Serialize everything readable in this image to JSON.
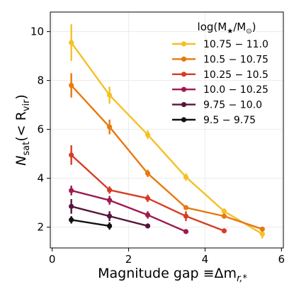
{
  "chart_data": {
    "type": "line",
    "xlabel": "Magnitude gap ≡Δm",
    "xlabel_sub": "r,*",
    "ylabel": "N",
    "ylabel_sub": "sat",
    "ylabel_paren": "(< R",
    "ylabel_paren_sub": "vir",
    "ylabel_close": ")",
    "xlim": [
      -0.05,
      6.05
    ],
    "ylim": [
      1.15,
      10.8
    ],
    "xticks": [
      0,
      2,
      4,
      6
    ],
    "yticks": [
      2,
      4,
      6,
      8,
      10
    ],
    "grid": true,
    "legend": {
      "placement": "top-right",
      "title_main": "log(M",
      "title_sub1": "★",
      "title_mid": "/M",
      "title_sub2": "⊙",
      "title_close": ")"
    },
    "series": [
      {
        "name": "10.75 − 11.0",
        "color": "#f5c024",
        "x": [
          0.5,
          1.5,
          2.5,
          3.5,
          4.5,
          5.5
        ],
        "y": [
          9.55,
          7.4,
          5.78,
          4.05,
          2.65,
          1.72
        ],
        "err": [
          0.75,
          0.35,
          0.18,
          0.15,
          0.12,
          0.18
        ]
      },
      {
        "name": "10.5 − 10.75",
        "color": "#e8790f",
        "x": [
          0.5,
          1.5,
          2.5,
          3.5,
          4.5,
          5.5
        ],
        "y": [
          7.8,
          6.1,
          4.2,
          2.8,
          2.45,
          1.92
        ],
        "err": [
          0.5,
          0.3,
          0.15,
          0.1,
          0.1,
          0.1
        ]
      },
      {
        "name": "10.25 − 10.5",
        "color": "#d63d25",
        "x": [
          0.5,
          1.5,
          2.5,
          3.5,
          4.5
        ],
        "y": [
          4.95,
          3.52,
          3.18,
          2.45,
          1.85
        ],
        "err": [
          0.4,
          0.15,
          0.15,
          0.2,
          0.06
        ]
      },
      {
        "name": "10.0 − 10.25",
        "color": "#9e1a4f",
        "x": [
          0.5,
          1.5,
          2.5,
          3.5
        ],
        "y": [
          3.5,
          3.1,
          2.5,
          1.82
        ],
        "err": [
          0.2,
          0.18,
          0.15,
          0.06
        ]
      },
      {
        "name": "9.75 − 10.0",
        "color": "#55163a",
        "x": [
          0.5,
          1.5,
          2.5
        ],
        "y": [
          2.85,
          2.45,
          2.05
        ],
        "err": [
          0.3,
          0.2,
          0.08
        ]
      },
      {
        "name": "9.5 − 9.75",
        "color": "#111111",
        "x": [
          0.5,
          1.5
        ],
        "y": [
          2.3,
          2.05
        ],
        "err": [
          0.15,
          0.15
        ]
      }
    ]
  }
}
